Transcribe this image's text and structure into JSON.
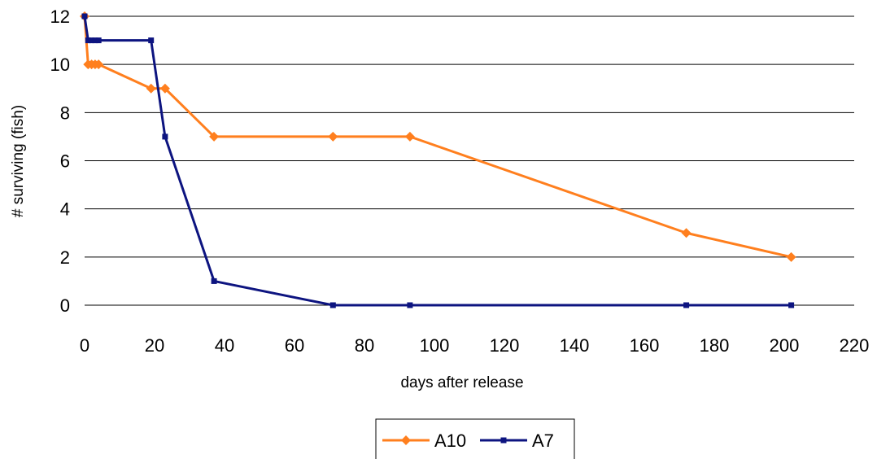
{
  "chart_data": {
    "type": "line",
    "title": "",
    "xlabel": "days after release",
    "ylabel": "# surviving (fish)",
    "xlim": [
      0,
      220
    ],
    "ylim": [
      0,
      12
    ],
    "xticks": [
      "0",
      "20",
      "40",
      "60",
      "80",
      "100",
      "120",
      "140",
      "160",
      "180",
      "200",
      "220"
    ],
    "yticks": [
      "0",
      "2",
      "4",
      "6",
      "8",
      "10",
      "12"
    ],
    "grid": "horizontal",
    "legend_position": "bottom",
    "series": [
      {
        "name": "A10",
        "color": "#ff7f1e",
        "marker": "diamond",
        "points": [
          [
            0,
            12
          ],
          [
            1,
            10
          ],
          [
            2,
            10
          ],
          [
            3,
            10
          ],
          [
            4,
            10
          ],
          [
            19,
            9
          ],
          [
            23,
            9
          ],
          [
            37,
            7
          ],
          [
            71,
            7
          ],
          [
            93,
            7
          ],
          [
            172,
            3
          ],
          [
            202,
            2
          ]
        ]
      },
      {
        "name": "A7",
        "color": "#0d1480",
        "marker": "square",
        "points": [
          [
            0,
            12
          ],
          [
            1,
            11
          ],
          [
            2,
            11
          ],
          [
            3,
            11
          ],
          [
            4,
            11
          ],
          [
            19,
            11
          ],
          [
            23,
            7
          ],
          [
            37,
            1
          ],
          [
            71,
            0
          ],
          [
            93,
            0
          ],
          [
            172,
            0
          ],
          [
            202,
            0
          ]
        ]
      }
    ]
  }
}
